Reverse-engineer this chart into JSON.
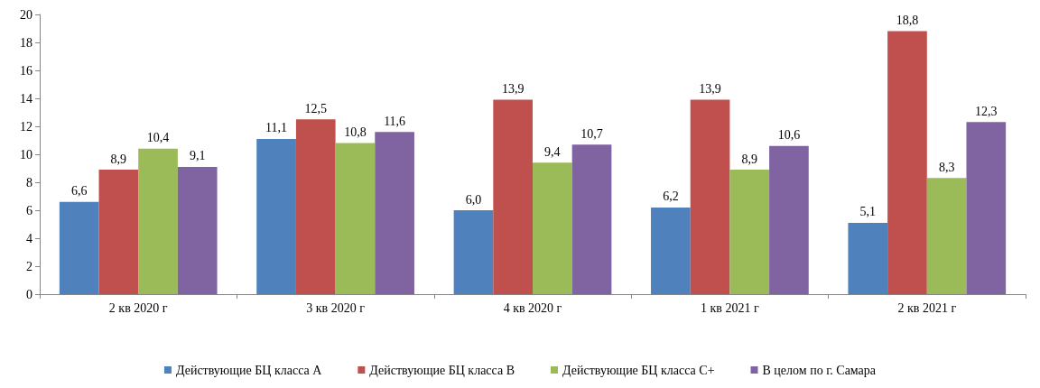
{
  "chart_data": {
    "type": "bar",
    "categories": [
      "2 кв 2020 г",
      "3 кв 2020 г",
      "4 кв 2020 г",
      "1 кв 2021 г",
      "2 кв 2021 г"
    ],
    "series": [
      {
        "name": "Действующие БЦ класса А",
        "color": "#4f81bd",
        "values": [
          6.6,
          11.1,
          6.0,
          6.2,
          5.1
        ],
        "value_labels": [
          "6,6",
          "11,1",
          "6,0",
          "6,2",
          "5,1"
        ]
      },
      {
        "name": "Действующие БЦ класса В",
        "color": "#c0504d",
        "values": [
          8.9,
          12.5,
          13.9,
          13.9,
          18.8
        ],
        "value_labels": [
          "8,9",
          "12,5",
          "13,9",
          "13,9",
          "18,8"
        ]
      },
      {
        "name": "Действующие БЦ класса С+",
        "color": "#9bbb59",
        "values": [
          10.4,
          10.8,
          9.4,
          8.9,
          8.3
        ],
        "value_labels": [
          "10,4",
          "10,8",
          "9,4",
          "8,9",
          "8,3"
        ]
      },
      {
        "name": "В целом по г. Самара",
        "color": "#8064a2",
        "values": [
          9.1,
          11.6,
          10.7,
          10.6,
          12.3
        ],
        "value_labels": [
          "9,1",
          "11,6",
          "10,7",
          "10,6",
          "12,3"
        ]
      }
    ],
    "ylim": [
      0,
      20
    ],
    "yticks": [
      0,
      2,
      4,
      6,
      8,
      10,
      12,
      14,
      16,
      18,
      20
    ],
    "grid": false,
    "legend": "bottom"
  }
}
